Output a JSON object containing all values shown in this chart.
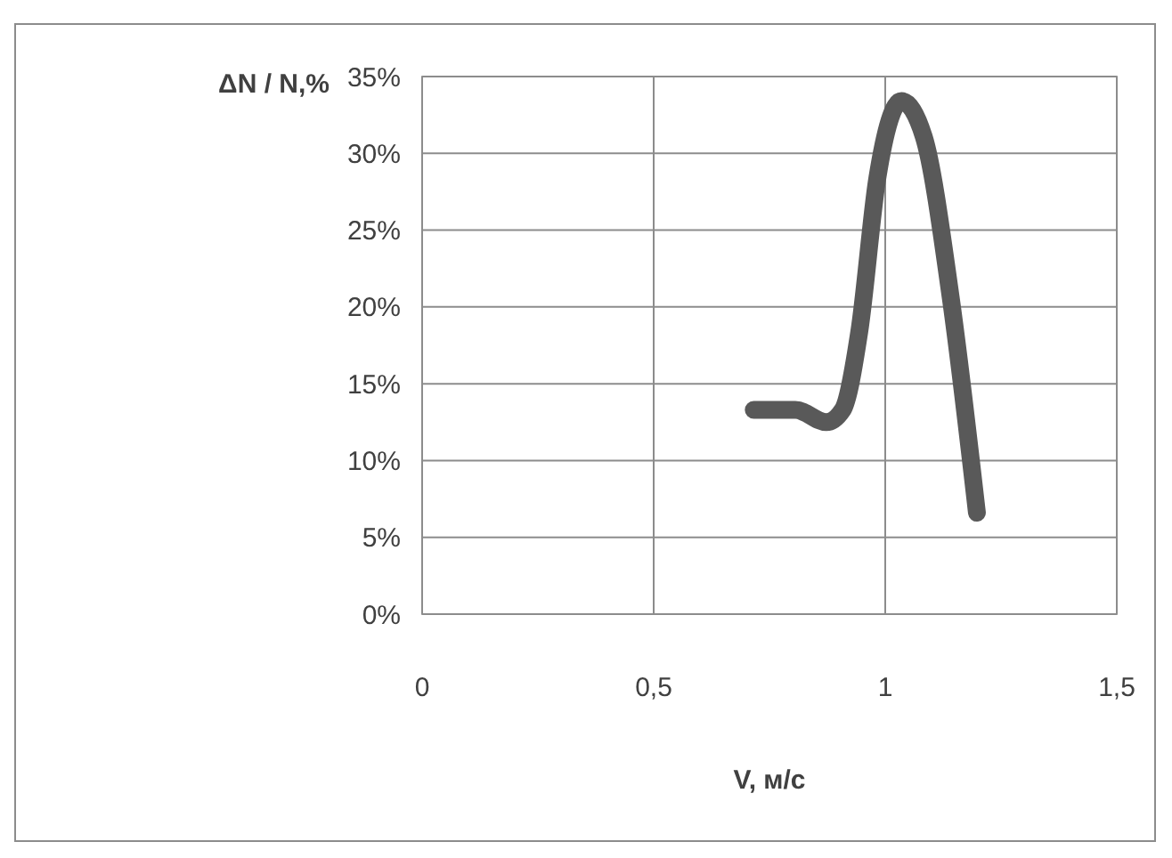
{
  "chart_data": {
    "type": "line",
    "xlabel": "V, м/с",
    "ylabel": "ΔN / N,%",
    "x": [
      0.716,
      0.806,
      0.873,
      0.908,
      0.944,
      0.983,
      1.035,
      1.083,
      1.141,
      1.198
    ],
    "series": [
      {
        "color": "#595959",
        "values": [
          13.3,
          13.3,
          12.5,
          13.3,
          18.4,
          28.4,
          33.4,
          31.1,
          20.7,
          6.6
        ]
      }
    ],
    "xlim": [
      0,
      1.5
    ],
    "xticks": [
      0,
      {
        "value": 0.5,
        "label": "0,5"
      },
      1,
      {
        "value": 1.5,
        "label": "1,5"
      }
    ],
    "ylim": [
      0,
      35
    ],
    "yticks": [
      {
        "value": 0,
        "label": "0%"
      },
      {
        "value": 5,
        "label": "5%"
      },
      {
        "value": 10,
        "label": "10%"
      },
      {
        "value": 15,
        "label": "15%"
      },
      {
        "value": 20,
        "label": "20%"
      },
      {
        "value": 25,
        "label": "25%"
      },
      {
        "value": 30,
        "label": "30%"
      },
      {
        "value": 35,
        "label": "35%"
      }
    ],
    "grid": true,
    "marker": "none",
    "line_style": "solid"
  }
}
